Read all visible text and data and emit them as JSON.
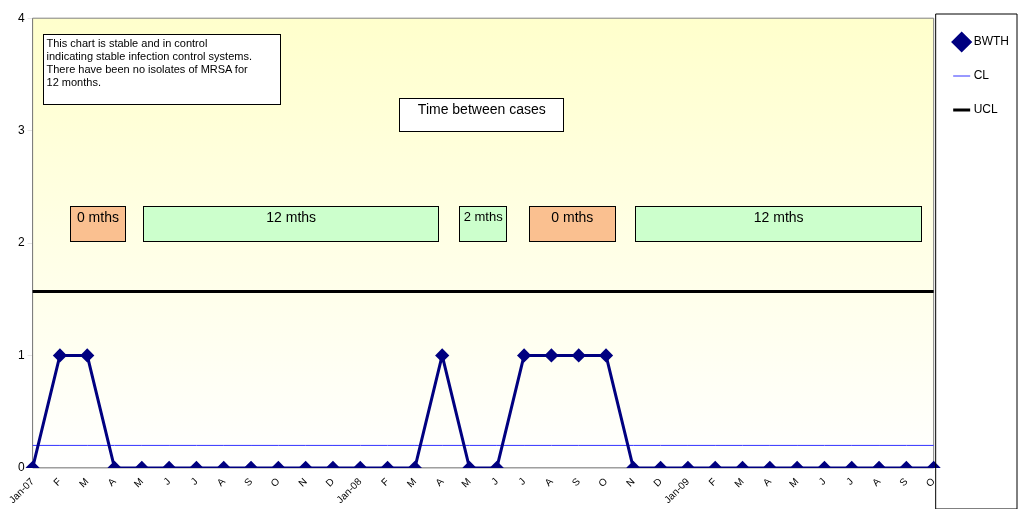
{
  "chart_data": {
    "type": "line",
    "categories": [
      "Jan-07",
      "F",
      "M",
      "A",
      "M",
      "J",
      "J",
      "A",
      "S",
      "O",
      "N",
      "D",
      "Jan-08",
      "F",
      "M",
      "A",
      "M",
      "J",
      "J",
      "A",
      "S",
      "O",
      "N",
      "D",
      "Jan-09",
      "F",
      "M",
      "A",
      "M",
      "J",
      "J",
      "A",
      "S",
      "O"
    ],
    "series": [
      {
        "name": "BWTH",
        "color": "#000080",
        "marker": "diamond",
        "values": [
          0,
          1,
          1,
          0,
          0,
          0,
          0,
          0,
          0,
          0,
          0,
          0,
          0,
          0,
          0,
          1,
          0,
          0,
          1,
          1,
          1,
          1,
          0,
          0,
          0,
          0,
          0,
          0,
          0,
          0,
          0,
          0,
          0,
          0
        ]
      },
      {
        "name": "CL",
        "color": "#3333ff",
        "marker": "none",
        "values": [
          0.2,
          0.2,
          0.2,
          0.2,
          0.2,
          0.2,
          0.2,
          0.2,
          0.2,
          0.2,
          0.2,
          0.2,
          0.2,
          0.2,
          0.2,
          0.2,
          0.2,
          0.2,
          0.2,
          0.2,
          0.2,
          0.2,
          0.2,
          0.2,
          0.2,
          0.2,
          0.2,
          0.2,
          0.2,
          0.2,
          0.2,
          0.2,
          0.2,
          0.2
        ]
      },
      {
        "name": "UCL",
        "color": "#000000",
        "marker": "none",
        "values": [
          1.57,
          1.57,
          1.57,
          1.57,
          1.57,
          1.57,
          1.57,
          1.57,
          1.57,
          1.57,
          1.57,
          1.57,
          1.57,
          1.57,
          1.57,
          1.57,
          1.57,
          1.57,
          1.57,
          1.57,
          1.57,
          1.57,
          1.57,
          1.57,
          1.57,
          1.57,
          1.57,
          1.57,
          1.57,
          1.57,
          1.57,
          1.57,
          1.57,
          1.57
        ]
      }
    ],
    "ylim": [
      0,
      4
    ],
    "yticks": [
      0,
      1,
      2,
      3,
      4
    ],
    "grid": false,
    "legend": "right",
    "annotations": [
      "This chart is stable and in control indicating stable infection control systems. There have been no isolates of MRSA for 12 months.",
      "Time between cases",
      "0 mths",
      "12 mths",
      "2 mths",
      "0 mths",
      "12 mths"
    ]
  }
}
